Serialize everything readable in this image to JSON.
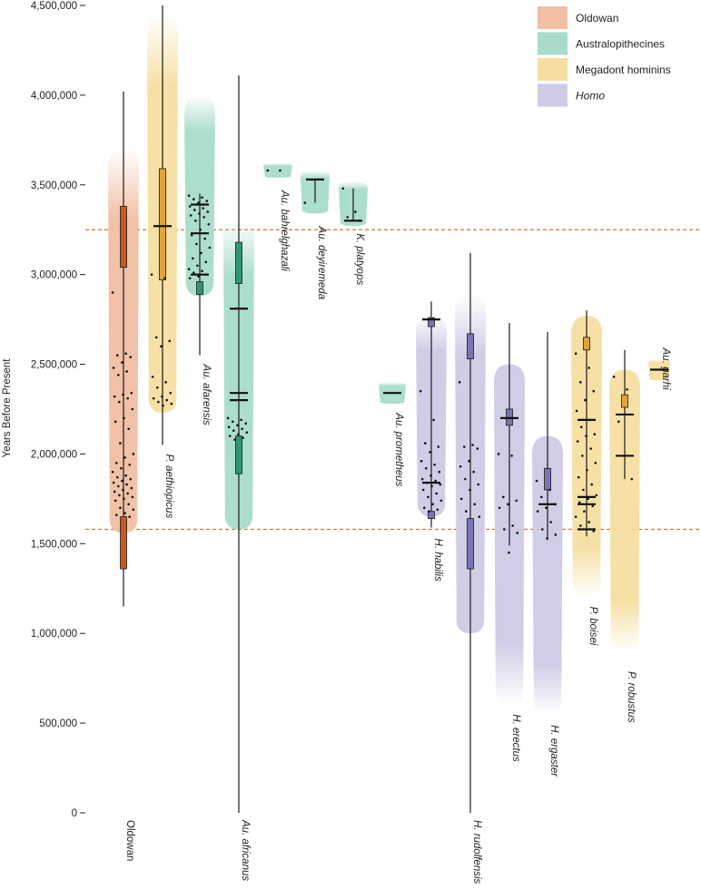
{
  "chart_data": {
    "type": "violin",
    "ylabel": "Years Before Present",
    "ylim": [
      0,
      4500000
    ],
    "yticks": [
      0,
      500000,
      1000000,
      1500000,
      2000000,
      2500000,
      3000000,
      3500000,
      4000000,
      4500000
    ],
    "ytick_labels": [
      "0",
      "500,000",
      "1,000,000",
      "1,500,000",
      "2,000,000",
      "2,500,000",
      "3,000,000",
      "3,500,000",
      "4,000,000",
      "4,500,000"
    ],
    "reference_lines": [
      3250000,
      1580000
    ],
    "colors": {
      "Oldowan": "#f1bfa4",
      "Australopithecines": "#a8dcc9",
      "Megadont hominins": "#f6dea0",
      "Homo": "#cdcbe5",
      "Oldowan_box": "#c8581e",
      "Australopithecines_box": "#2e9873",
      "Megadont hominins_box": "#e2a43a",
      "Homo_box": "#7c75b4",
      "reference_line": "#d3733a"
    },
    "legend": {
      "placement": "top-right",
      "entries": [
        {
          "label": "Oldowan",
          "group": "Oldowan",
          "italic": false
        },
        {
          "label": "Australopithecines",
          "group": "Australopithecines",
          "italic": false
        },
        {
          "label": "Megadont hominins",
          "group": "Megadont hominins",
          "italic": false
        },
        {
          "label": "Homo",
          "group": "Homo",
          "italic": true
        }
      ]
    },
    "taxa": [
      {
        "label": "Oldowan",
        "group": "Oldowan",
        "ymin": 1150000,
        "ymax": 4020000,
        "violin_top": 3700000,
        "violin_bottom": 1560000,
        "q1": 1360000,
        "q3": 1650000,
        "q1b": 3040000,
        "q3b": 3380000,
        "medians": [],
        "points": [
          2900000,
          2560000,
          2550000,
          2540000,
          2510000,
          2480000,
          2460000,
          2440000,
          2340000,
          2330000,
          2320000,
          2310000,
          2290000,
          2250000,
          2200000,
          2180000,
          2140000,
          2060000,
          2000000,
          1980000,
          1950000,
          1940000,
          1920000,
          1900000,
          1880000,
          1870000,
          1860000,
          1850000,
          1840000,
          1830000,
          1820000,
          1810000,
          1800000,
          1790000,
          1780000,
          1770000,
          1760000,
          1750000,
          1740000,
          1720000,
          1700000,
          1690000,
          1670000,
          1660000,
          1650000
        ]
      },
      {
        "label": "P. aethiopicus",
        "group": "Megadont hominins",
        "ymin": 2050000,
        "ymax": 4500000,
        "violin_top": 4450000,
        "violin_bottom": 2230000,
        "q1": 2970000,
        "q3": 3590000,
        "medians": [
          3270000
        ],
        "points": [
          3000000,
          2980000,
          2650000,
          2630000,
          2600000,
          2430000,
          2400000,
          2370000,
          2340000,
          2320000,
          2310000,
          2300000,
          2290000,
          2280000,
          2270000
        ]
      },
      {
        "label": "Au. afarensis",
        "group": "Australopithecines",
        "ymin": 2550000,
        "ymax": 3450000,
        "violin_top": 4000000,
        "violin_bottom": 2880000,
        "q1": 2890000,
        "q3": 2960000,
        "medians": [
          3390000,
          3230000,
          3000000
        ],
        "points": [
          3440000,
          3430000,
          3420000,
          3410000,
          3400000,
          3380000,
          3370000,
          3360000,
          3350000,
          3340000,
          3330000,
          3320000,
          3300000,
          3280000,
          3250000,
          3220000,
          3200000,
          3170000,
          3150000,
          3120000,
          3090000,
          3070000,
          3050000,
          3030000,
          3020000,
          3010000,
          3000000,
          2990000,
          2980000
        ]
      },
      {
        "label": "Au. africanus",
        "group": "Australopithecines",
        "ymin": 0,
        "ymax": 4110000,
        "violin_top": 3300000,
        "violin_bottom": 1580000,
        "q1": 1890000,
        "q3": 2100000,
        "q1b": 2950000,
        "q3b": 3180000,
        "medians": [
          2810000,
          2340000,
          2300000
        ],
        "points": [
          2200000,
          2190000,
          2180000,
          2170000,
          2160000,
          2150000,
          2140000,
          2130000,
          2120000,
          2110000,
          2100000,
          2090000,
          2080000
        ]
      },
      {
        "label": "Au. bahrelghazali",
        "group": "Australopithecines",
        "ymin": 3580000,
        "ymax": 3580000,
        "violin_top": 3620000,
        "violin_bottom": 3540000,
        "medians": [],
        "points": [
          3580000,
          3580000
        ]
      },
      {
        "label": "Au. deyiremeda",
        "group": "Australopithecines",
        "ymin": 3400000,
        "ymax": 3530000,
        "violin_top": 3580000,
        "violin_bottom": 3340000,
        "medians": [
          3530000
        ],
        "points": [
          3400000
        ]
      },
      {
        "label": "K. platyops",
        "group": "Australopithecines",
        "ymin": 3300000,
        "ymax": 3480000,
        "violin_top": 3520000,
        "violin_bottom": 3270000,
        "medians": [
          3300000
        ],
        "points": [
          3480000,
          3350000,
          3320000,
          3300000
        ]
      },
      {
        "label": "Au. prometheus",
        "group": "Australopithecines",
        "ymin": 2340000,
        "ymax": 2340000,
        "violin_top": 2400000,
        "violin_bottom": 2280000,
        "medians": [
          2340000
        ],
        "points": []
      },
      {
        "label": "H. habilis",
        "group": "Homo",
        "ymin": 1590000,
        "ymax": 2850000,
        "violin_top": 2780000,
        "violin_bottom": 1650000,
        "q1": 1640000,
        "q3": 1680000,
        "q1b": 2710000,
        "q3b": 2760000,
        "medians": [
          2750000,
          1840000
        ],
        "points": [
          2350000,
          2190000,
          2060000,
          2040000,
          2010000,
          1960000,
          1940000,
          1920000,
          1900000,
          1880000,
          1860000,
          1850000,
          1840000,
          1830000,
          1820000,
          1800000,
          1780000,
          1760000,
          1740000,
          1720000,
          1700000,
          1690000,
          1680000
        ]
      },
      {
        "label": "H. rudolfensis",
        "group": "Homo",
        "ymin": 0,
        "ymax": 3120000,
        "violin_top": 2890000,
        "violin_bottom": 1000000,
        "q1": 1360000,
        "q3": 1640000,
        "q1b": 2530000,
        "q3b": 2670000,
        "medians": [],
        "points": [
          2400000,
          2050000,
          2040000,
          2030000,
          1960000,
          1930000,
          1900000,
          1860000,
          1830000,
          1800000,
          1750000,
          1720000,
          1680000,
          1650000
        ]
      },
      {
        "label": "H. erectus",
        "group": "Homo",
        "ymin": 1490000,
        "ymax": 2730000,
        "violin_top": 2500000,
        "violin_bottom": 600000,
        "q1": 2160000,
        "q3": 2250000,
        "medians": [
          2200000
        ],
        "points": [
          2000000,
          1990000,
          1760000,
          1740000,
          1720000,
          1700000,
          1600000,
          1580000,
          1560000,
          1450000
        ]
      },
      {
        "label": "H. ergaster",
        "group": "Homo",
        "ymin": 1520000,
        "ymax": 2680000,
        "violin_top": 2100000,
        "violin_bottom": 550000,
        "q1": 1800000,
        "q3": 1920000,
        "medians": [
          1720000
        ],
        "points": [
          1850000,
          1800000,
          1760000,
          1720000,
          1700000,
          1680000,
          1620000,
          1580000,
          1550000,
          1530000
        ]
      },
      {
        "label": "P. boisei",
        "group": "Megadont hominins",
        "ymin": 1540000,
        "ymax": 2800000,
        "violin_top": 2770000,
        "violin_bottom": 1200000,
        "q1": 2580000,
        "q3": 2650000,
        "medians": [
          2190000,
          1760000,
          1720000,
          1580000
        ],
        "points": [
          2560000,
          2480000,
          2400000,
          2350000,
          2300000,
          2240000,
          2190000,
          2150000,
          2110000,
          2100000,
          2070000,
          2030000,
          1990000,
          1950000,
          1910000,
          1870000,
          1830000,
          1800000,
          1770000,
          1750000,
          1730000,
          1710000,
          1680000,
          1650000,
          1620000,
          1600000,
          1570000
        ]
      },
      {
        "label": "P. robustus",
        "group": "Megadont hominins",
        "ymin": 1860000,
        "ymax": 2580000,
        "violin_top": 2470000,
        "violin_bottom": 900000,
        "q1": 2260000,
        "q3": 2330000,
        "medians": [
          2220000,
          1990000
        ],
        "points": [
          2430000,
          2360000,
          2180000,
          1860000
        ]
      },
      {
        "label": "Au. garhi",
        "group": "Megadont hominins",
        "ymin": 2470000,
        "ymax": 2470000,
        "violin_top": 2530000,
        "violin_bottom": 2410000,
        "medians": [
          2470000
        ],
        "points": []
      }
    ]
  }
}
